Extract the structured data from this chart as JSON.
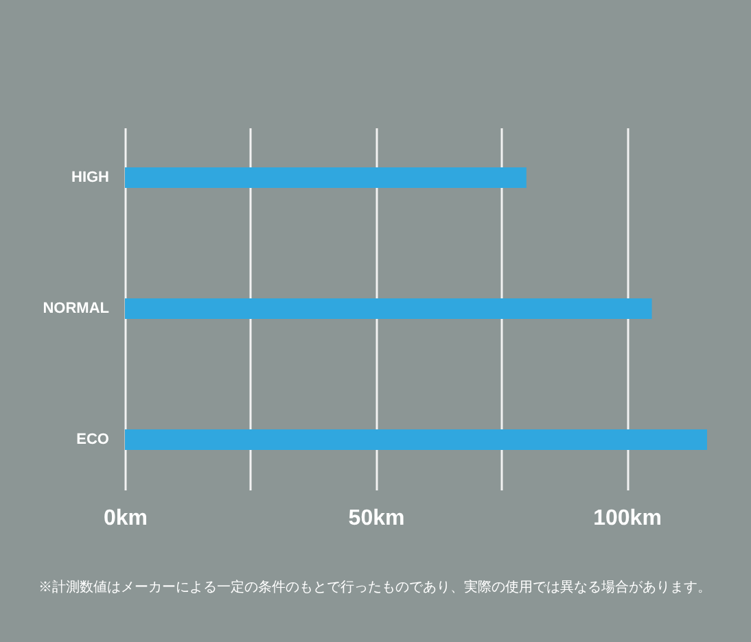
{
  "chart_data": {
    "type": "bar",
    "orientation": "horizontal",
    "categories": [
      "HIGH",
      "NORMAL",
      "ECO"
    ],
    "values": [
      80,
      105,
      116
    ],
    "color": "#30a7df",
    "xlim": [
      0,
      116
    ],
    "xticks": [
      {
        "value": 0,
        "label": "0km"
      },
      {
        "value": 25,
        "label": null
      },
      {
        "value": 50,
        "label": "50km"
      },
      {
        "value": 75,
        "label": null
      },
      {
        "value": 100,
        "label": "100km"
      }
    ],
    "grid": "x",
    "annotations": [
      "※計測数値はメーカーによる一定の条件のもとで行ったものであり、実際の使用では異なる場合があります。"
    ]
  }
}
